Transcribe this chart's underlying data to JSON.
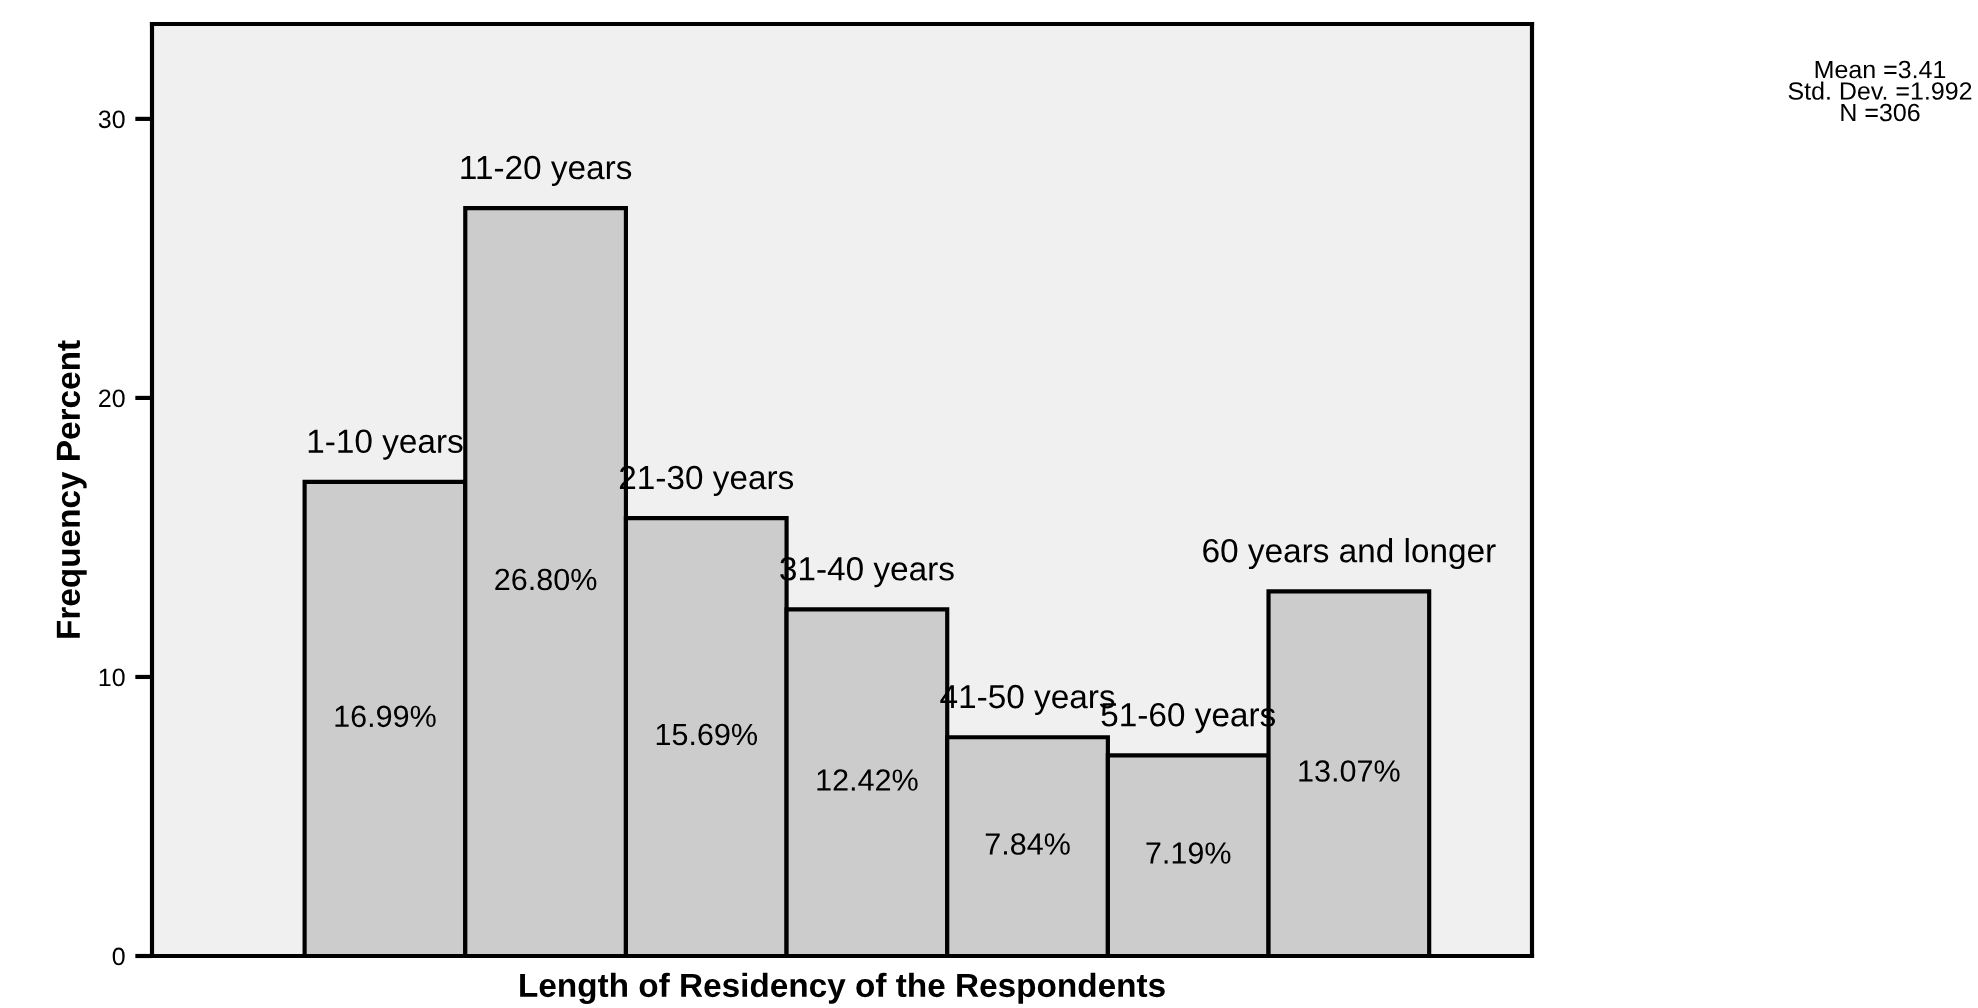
{
  "chart_data": {
    "type": "bar",
    "xlabel": "Length of Residency of the Respondents",
    "ylabel": "Frequency Percent",
    "categories": [
      "1-10 years",
      "11-20 years",
      "21-30 years",
      "31-40 years",
      "41-50 years",
      "51-60 years",
      "60 years and longer"
    ],
    "values": [
      16.99,
      26.8,
      15.69,
      12.42,
      7.84,
      7.19,
      13.07
    ],
    "value_labels": [
      "16.99%",
      "26.80%",
      "15.69%",
      "12.42%",
      "7.84%",
      "7.19%",
      "13.07%"
    ],
    "color": "#cccccc",
    "ylim": [
      0,
      33.4
    ],
    "yticks": [
      0,
      10,
      20,
      30
    ],
    "tick_labels": "y",
    "grid": false,
    "legend": false,
    "annotations": [
      "Mean =3.41\nStd. Dev. =1.992\nN =306"
    ]
  }
}
